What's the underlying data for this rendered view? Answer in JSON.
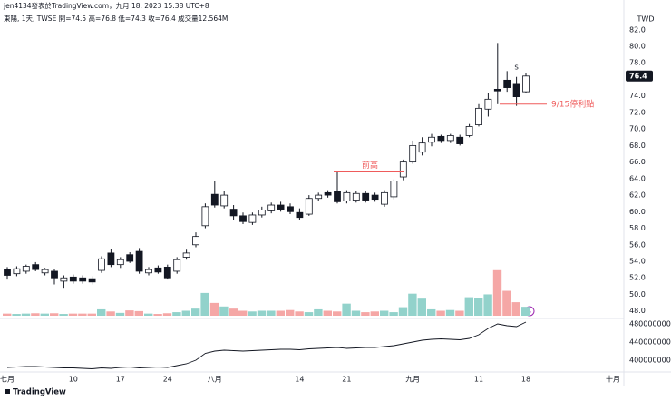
{
  "chart_data": {
    "type": "candlestick",
    "header": "jen4134發表於TradingView.com，九月 18, 2023 15:38 UTC+8",
    "legend": "東陽, 1天, TWSE  開=74.5  高=76.8  低=74.3  收=76.4  成交量12.564M",
    "currency": "TWD",
    "footer": "TradingView",
    "categories": [
      "七月",
      null,
      null,
      null,
      null,
      null,
      null,
      "10",
      null,
      null,
      null,
      null,
      "17",
      null,
      null,
      null,
      null,
      "24",
      null,
      null,
      null,
      null,
      "八月",
      null,
      null,
      null,
      null,
      null,
      null,
      null,
      null,
      "14",
      null,
      null,
      null,
      null,
      "21",
      null,
      null,
      null,
      null,
      null,
      null,
      "九月",
      null,
      null,
      null,
      null,
      null,
      null,
      "11",
      null,
      null,
      null,
      null,
      "18"
    ],
    "future_label": "十月",
    "open": [
      53.0,
      52.5,
      52.8,
      53.6,
      52.6,
      52.8,
      51.6,
      52.1,
      52.0,
      51.9,
      52.9,
      55.0,
      53.6,
      54.8,
      55.2,
      52.6,
      53.2,
      53.3,
      52.8,
      54.5,
      56.0,
      58.3,
      62.1,
      60.7,
      60.3,
      59.5,
      58.7,
      59.6,
      60.1,
      60.8,
      60.6,
      59.9,
      59.7,
      61.6,
      62.3,
      62.5,
      61.3,
      61.4,
      62.2,
      62.0,
      60.9,
      61.8,
      64.2,
      66.0,
      67.2,
      68.4,
      69.1,
      68.6,
      69.0,
      69.2,
      70.5,
      72.4,
      74.8,
      75.9,
      75.4,
      74.5
    ],
    "high": [
      53.3,
      53.4,
      53.6,
      53.9,
      53.2,
      53.1,
      52.3,
      52.4,
      52.3,
      52.2,
      54.6,
      55.5,
      54.5,
      55.1,
      55.6,
      53.3,
      53.5,
      53.6,
      54.5,
      55.4,
      57.5,
      61.0,
      63.7,
      62.5,
      60.8,
      59.9,
      59.9,
      60.6,
      61.1,
      61.2,
      61.0,
      60.4,
      62.0,
      62.3,
      62.6,
      64.8,
      62.6,
      62.5,
      62.5,
      62.3,
      62.6,
      63.9,
      66.3,
      68.6,
      69.0,
      69.4,
      69.3,
      69.4,
      69.3,
      70.6,
      73.0,
      74.3,
      80.4,
      77.0,
      76.3,
      76.8
    ],
    "low": [
      51.8,
      52.2,
      52.5,
      52.8,
      52.3,
      51.2,
      50.8,
      51.3,
      51.3,
      51.2,
      52.6,
      53.3,
      53.2,
      53.8,
      52.5,
      52.3,
      52.5,
      51.8,
      52.5,
      54.2,
      55.7,
      58.0,
      60.5,
      60.4,
      59.0,
      58.5,
      58.4,
      59.3,
      59.8,
      60.0,
      59.7,
      59.0,
      59.5,
      61.3,
      61.7,
      61.0,
      61.0,
      61.1,
      61.1,
      61.2,
      60.6,
      61.5,
      63.8,
      65.8,
      66.8,
      67.9,
      68.3,
      68.3,
      68.0,
      69.0,
      70.3,
      71.5,
      73.0,
      74.5,
      72.8,
      74.3
    ],
    "close": [
      52.3,
      53.1,
      53.4,
      53.0,
      53.0,
      52.0,
      52.0,
      51.6,
      51.6,
      51.5,
      54.3,
      53.6,
      54.2,
      54.0,
      52.8,
      53.0,
      52.7,
      52.0,
      54.2,
      55.0,
      57.0,
      60.6,
      60.8,
      62.0,
      59.5,
      58.8,
      59.6,
      60.2,
      60.8,
      60.3,
      60.0,
      59.3,
      61.6,
      62.0,
      62.0,
      61.2,
      62.3,
      62.2,
      61.4,
      61.5,
      62.3,
      63.7,
      66.0,
      68.0,
      68.3,
      69.0,
      68.6,
      69.2,
      68.2,
      70.3,
      72.5,
      73.6,
      74.6,
      75.0,
      73.9,
      76.4
    ],
    "volume": [
      3,
      2.5,
      3,
      3.5,
      3,
      3.5,
      2.5,
      3,
      3,
      3,
      9,
      6,
      4,
      7.5,
      6.5,
      3,
      2.5,
      3.5,
      5,
      7,
      10,
      32,
      18,
      13,
      10,
      7,
      6,
      7,
      7,
      7,
      8,
      6,
      5,
      9,
      7,
      6,
      17,
      7,
      5,
      6,
      7,
      5,
      12,
      31,
      24,
      9,
      7,
      8,
      7,
      26,
      25,
      30,
      64,
      35,
      19,
      12.564
    ],
    "volume_ylim": [
      0,
      130
    ],
    "up_color": "#ffffff",
    "down_color": "#131722",
    "volume_up_color": "#92d2cb",
    "volume_down_color": "#f5a7a6",
    "ylim": [
      47.2,
      83.4
    ],
    "yticks": [
      {
        "value": 48,
        "label": "48.0"
      },
      {
        "value": 50,
        "label": "50.0"
      },
      {
        "value": 52,
        "label": "52.0"
      },
      {
        "value": 54,
        "label": "54.0"
      },
      {
        "value": 56,
        "label": "56.0"
      },
      {
        "value": 58,
        "label": "58.0"
      },
      {
        "value": 60,
        "label": "60.0"
      },
      {
        "value": 62,
        "label": "62.0"
      },
      {
        "value": 64,
        "label": "64.0"
      },
      {
        "value": 66,
        "label": "66.0"
      },
      {
        "value": 68,
        "label": "68.0"
      },
      {
        "value": 70,
        "label": "70.0"
      },
      {
        "value": 72,
        "label": "72.0"
      },
      {
        "value": 74,
        "label": "74.0"
      },
      {
        "value": 78,
        "label": "78.0"
      },
      {
        "value": 80,
        "label": "80.0"
      },
      {
        "value": 82,
        "label": "82.0"
      }
    ],
    "annotations": [
      {
        "text": "前高",
        "y": 64.8,
        "color": "#ef5b5b"
      },
      {
        "text": "9/15停利點",
        "y": 73.0,
        "color": "#ef5b5b"
      },
      {
        "text": "S"
      }
    ],
    "indicator": {
      "values": [
        384000000,
        385000000,
        386000000,
        386000000,
        385000000,
        384000000,
        383000000,
        383000000,
        382000000,
        381000000,
        383000000,
        382000000,
        384000000,
        385000000,
        383000000,
        384000000,
        385000000,
        384000000,
        388000000,
        392000000,
        400000000,
        415000000,
        420000000,
        422000000,
        421000000,
        420000000,
        421000000,
        422000000,
        423000000,
        424000000,
        424000000,
        423000000,
        425000000,
        426000000,
        427000000,
        428000000,
        426000000,
        427000000,
        428000000,
        428000000,
        430000000,
        432000000,
        436000000,
        440000000,
        444000000,
        446000000,
        447000000,
        446000000,
        445000000,
        448000000,
        456000000,
        470000000,
        480000000,
        476000000,
        474000000,
        484000000
      ],
      "ylim": [
        374000000,
        490000000
      ],
      "yticks": [
        400000000,
        440000000,
        480000000
      ],
      "color": "#131722"
    }
  }
}
